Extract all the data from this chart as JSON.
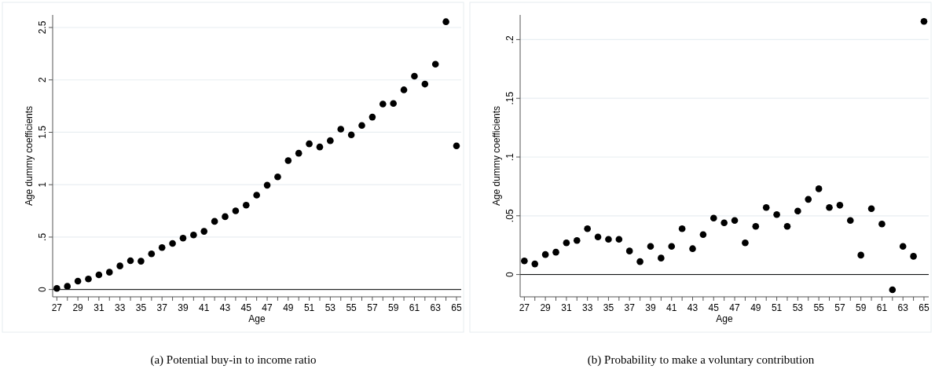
{
  "chart_data": [
    {
      "type": "scatter",
      "title": "(a) Potential buy-in to income ratio",
      "xlabel": "Age",
      "ylabel": "Age dummy coefficients",
      "x": [
        27,
        28,
        29,
        30,
        31,
        32,
        33,
        34,
        35,
        36,
        37,
        38,
        39,
        40,
        41,
        42,
        43,
        44,
        45,
        46,
        47,
        48,
        49,
        50,
        51,
        52,
        53,
        54,
        55,
        56,
        57,
        58,
        59,
        60,
        61,
        62,
        63,
        64,
        65
      ],
      "series": [
        {
          "color": "#000000",
          "values": [
            0.01,
            0.03,
            0.08,
            0.1,
            0.14,
            0.165,
            0.225,
            0.275,
            0.27,
            0.34,
            0.4,
            0.44,
            0.49,
            0.52,
            0.555,
            0.65,
            0.695,
            0.75,
            0.805,
            0.9,
            0.995,
            1.075,
            1.23,
            1.3,
            1.39,
            1.36,
            1.42,
            1.53,
            1.475,
            1.565,
            1.645,
            1.77,
            1.775,
            1.905,
            2.035,
            1.96,
            2.15,
            2.555,
            1.37
          ]
        }
      ],
      "xlim": [
        26.6,
        65.45
      ],
      "xticks": [
        27,
        {
          "value": 28,
          "label": null
        },
        29,
        {
          "value": 30,
          "label": null
        },
        31,
        {
          "value": 32,
          "label": null
        },
        33,
        {
          "value": 34,
          "label": null
        },
        35,
        {
          "value": 36,
          "label": null
        },
        37,
        {
          "value": 38,
          "label": null
        },
        39,
        {
          "value": 40,
          "label": null
        },
        41,
        {
          "value": 42,
          "label": null
        },
        43,
        {
          "value": 44,
          "label": null
        },
        45,
        {
          "value": 46,
          "label": null
        },
        47,
        {
          "value": 48,
          "label": null
        },
        49,
        {
          "value": 50,
          "label": null
        },
        51,
        {
          "value": 52,
          "label": null
        },
        53,
        {
          "value": 54,
          "label": null
        },
        55,
        {
          "value": 56,
          "label": null
        },
        57,
        {
          "value": 58,
          "label": null
        },
        59,
        {
          "value": 60,
          "label": null
        },
        61,
        {
          "value": 62,
          "label": null
        },
        63,
        {
          "value": 64,
          "label": null
        },
        65
      ],
      "ylim": [
        -0.07,
        2.62
      ],
      "yticks": [
        0,
        {
          "value": 0.5,
          "label": ".5"
        },
        1,
        1.5,
        2,
        2.5
      ],
      "ref_lines": [
        {
          "axis": "y",
          "value": 0,
          "color": "#000000"
        }
      ],
      "grid": "y",
      "marker": "circle"
    },
    {
      "type": "scatter",
      "title": "(b) Probability to make a voluntary contribution",
      "xlabel": "Age",
      "ylabel": "Age dummy coefficients",
      "x": [
        27,
        28,
        29,
        30,
        31,
        32,
        33,
        34,
        35,
        36,
        37,
        38,
        39,
        40,
        41,
        42,
        43,
        44,
        45,
        46,
        47,
        48,
        49,
        50,
        51,
        52,
        53,
        54,
        55,
        56,
        57,
        58,
        59,
        60,
        61,
        62,
        63,
        64,
        65
      ],
      "series": [
        {
          "color": "#000000",
          "values": [
            0.0116,
            0.009,
            0.017,
            0.019,
            0.027,
            0.029,
            0.039,
            0.032,
            0.03,
            0.03,
            0.02,
            0.011,
            0.024,
            0.014,
            0.024,
            0.039,
            0.022,
            0.034,
            0.048,
            0.044,
            0.046,
            0.027,
            0.041,
            0.057,
            0.051,
            0.041,
            0.054,
            0.064,
            0.073,
            0.057,
            0.059,
            0.046,
            0.0165,
            0.056,
            0.043,
            -0.013,
            0.024,
            0.0155,
            0.2155
          ]
        }
      ],
      "xlim": [
        26.6,
        65.45
      ],
      "xticks": [
        27,
        {
          "value": 28,
          "label": null
        },
        29,
        {
          "value": 30,
          "label": null
        },
        31,
        {
          "value": 32,
          "label": null
        },
        33,
        {
          "value": 34,
          "label": null
        },
        35,
        {
          "value": 36,
          "label": null
        },
        37,
        {
          "value": 38,
          "label": null
        },
        39,
        {
          "value": 40,
          "label": null
        },
        41,
        {
          "value": 42,
          "label": null
        },
        43,
        {
          "value": 44,
          "label": null
        },
        45,
        {
          "value": 46,
          "label": null
        },
        47,
        {
          "value": 48,
          "label": null
        },
        49,
        {
          "value": 50,
          "label": null
        },
        51,
        {
          "value": 52,
          "label": null
        },
        53,
        {
          "value": 54,
          "label": null
        },
        55,
        {
          "value": 56,
          "label": null
        },
        57,
        {
          "value": 58,
          "label": null
        },
        59,
        {
          "value": 60,
          "label": null
        },
        61,
        {
          "value": 62,
          "label": null
        },
        63,
        {
          "value": 64,
          "label": null
        },
        65
      ],
      "ylim": [
        -0.019,
        0.221
      ],
      "yticks": [
        0,
        {
          "value": 0.05,
          "label": ".05"
        },
        {
          "value": 0.1,
          "label": ".1"
        },
        {
          "value": 0.15,
          "label": ".15"
        },
        {
          "value": 0.2,
          "label": ".2"
        }
      ],
      "ref_lines": [
        {
          "axis": "y",
          "value": 0,
          "color": "#000000"
        }
      ],
      "grid": "y",
      "marker": "circle"
    }
  ]
}
